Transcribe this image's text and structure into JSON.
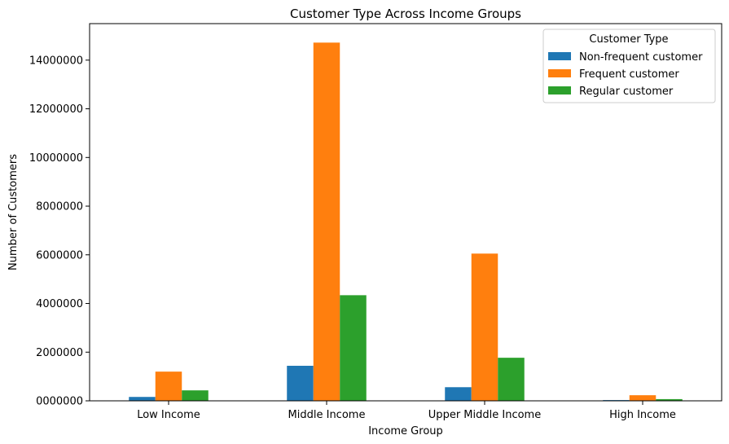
{
  "chart_data": {
    "type": "bar",
    "title": "Customer Type Across Income Groups",
    "xlabel": "Income Group",
    "ylabel": "Number of Customers",
    "categories": [
      "Low Income",
      "Middle Income",
      "Upper Middle Income",
      "High Income"
    ],
    "series": [
      {
        "name": "Non-frequent customer",
        "color": "#1f77b4",
        "values": [
          160000,
          1440000,
          560000,
          30000
        ]
      },
      {
        "name": "Frequent customer",
        "color": "#ff7f0e",
        "values": [
          1200000,
          14720000,
          6050000,
          230000
        ]
      },
      {
        "name": "Regular customer",
        "color": "#2ca02c",
        "values": [
          430000,
          4340000,
          1770000,
          70000
        ]
      }
    ],
    "ylim": [
      0,
      15500000
    ],
    "yticks": [
      "0000000",
      "2000000",
      "4000000",
      "6000000",
      "8000000",
      "10000000",
      "12000000",
      "14000000"
    ],
    "ytick_values": [
      0,
      2000000,
      4000000,
      6000000,
      8000000,
      10000000,
      12000000,
      14000000
    ],
    "legend": {
      "title": "Customer Type",
      "placement": "top-right"
    },
    "grid": false
  }
}
